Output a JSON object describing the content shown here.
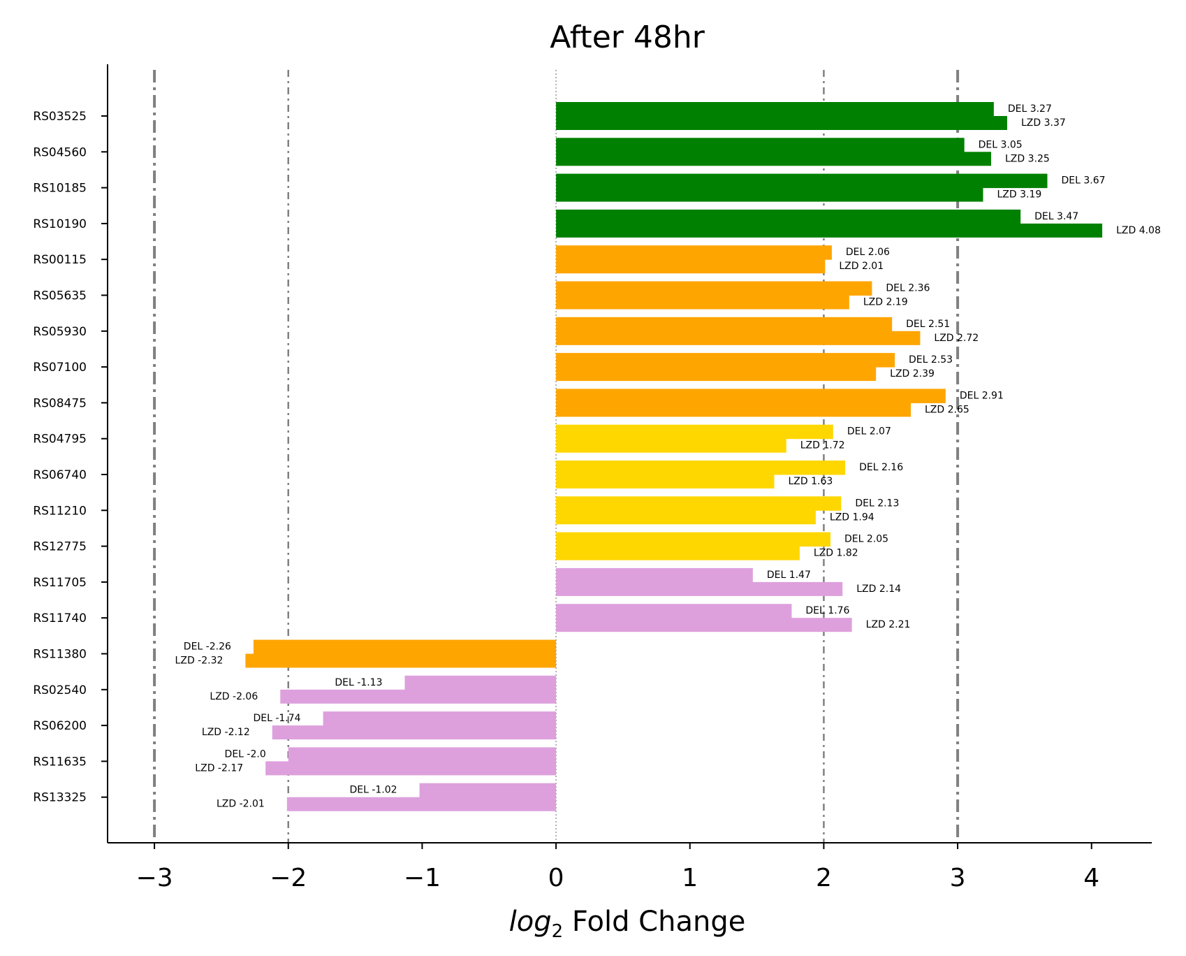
{
  "chart_data": {
    "type": "bar",
    "orientation": "horizontal",
    "title": "After 48hr",
    "xlabel_italic": "log",
    "xlabel_sub": "2",
    "xlabel_rest": "Fold Change",
    "xlim": [
      -3.35,
      4.45
    ],
    "xticks": [
      -3,
      -2,
      -1,
      0,
      1,
      2,
      3,
      4
    ],
    "xtick_labels": [
      "−3",
      "−2",
      "−1",
      "0",
      "1",
      "2",
      "3",
      "4"
    ],
    "reference_lines": [
      {
        "x": -3,
        "style": "thick-dashdot"
      },
      {
        "x": -2,
        "style": "thin-dashdot"
      },
      {
        "x": 0,
        "style": "dotted"
      },
      {
        "x": 2,
        "style": "thin-dashdot"
      },
      {
        "x": 3,
        "style": "thick-dashdot"
      }
    ],
    "colors": {
      "green": "#008000",
      "orange": "#FFA500",
      "gold": "#FFD700",
      "plum": "#DDA0DD",
      "refline": "#808080"
    },
    "series_labels": [
      "DEL",
      "LZD"
    ],
    "categories": [
      {
        "name": "RS03525",
        "color": "green",
        "del": 3.27,
        "lzd": 3.37,
        "del_label": "DEL 3.27",
        "lzd_label": "LZD 3.37"
      },
      {
        "name": "RS04560",
        "color": "green",
        "del": 3.05,
        "lzd": 3.25,
        "del_label": "DEL 3.05",
        "lzd_label": "LZD 3.25"
      },
      {
        "name": "RS10185",
        "color": "green",
        "del": 3.67,
        "lzd": 3.19,
        "del_label": "DEL 3.67",
        "lzd_label": "LZD 3.19"
      },
      {
        "name": "RS10190",
        "color": "green",
        "del": 3.47,
        "lzd": 4.08,
        "del_label": "DEL 3.47",
        "lzd_label": "LZD 4.08"
      },
      {
        "name": "RS00115",
        "color": "orange",
        "del": 2.06,
        "lzd": 2.01,
        "del_label": "DEL 2.06",
        "lzd_label": "LZD 2.01"
      },
      {
        "name": "RS05635",
        "color": "orange",
        "del": 2.36,
        "lzd": 2.19,
        "del_label": "DEL 2.36",
        "lzd_label": "LZD 2.19"
      },
      {
        "name": "RS05930",
        "color": "orange",
        "del": 2.51,
        "lzd": 2.72,
        "del_label": "DEL 2.51",
        "lzd_label": "LZD 2.72"
      },
      {
        "name": "RS07100",
        "color": "orange",
        "del": 2.53,
        "lzd": 2.39,
        "del_label": "DEL 2.53",
        "lzd_label": "LZD 2.39"
      },
      {
        "name": "RS08475",
        "color": "orange",
        "del": 2.91,
        "lzd": 2.65,
        "del_label": "DEL 2.91",
        "lzd_label": "LZD 2.65"
      },
      {
        "name": "RS04795",
        "color": "gold",
        "del": 2.07,
        "lzd": 1.72,
        "del_label": "DEL 2.07",
        "lzd_label": "LZD 1.72"
      },
      {
        "name": "RS06740",
        "color": "gold",
        "del": 2.16,
        "lzd": 1.63,
        "del_label": "DEL 2.16",
        "lzd_label": "LZD 1.63"
      },
      {
        "name": "RS11210",
        "color": "gold",
        "del": 2.13,
        "lzd": 1.94,
        "del_label": "DEL 2.13",
        "lzd_label": "LZD 1.94"
      },
      {
        "name": "RS12775",
        "color": "gold",
        "del": 2.05,
        "lzd": 1.82,
        "del_label": "DEL 2.05",
        "lzd_label": "LZD 1.82"
      },
      {
        "name": "RS11705",
        "color": "plum",
        "del": 1.47,
        "lzd": 2.14,
        "del_label": "DEL 1.47",
        "lzd_label": "LZD 2.14"
      },
      {
        "name": "RS11740",
        "color": "plum",
        "del": 1.76,
        "lzd": 2.21,
        "del_label": "DEL 1.76",
        "lzd_label": "LZD 2.21"
      },
      {
        "name": "RS11380",
        "color": "orange",
        "del": -2.26,
        "lzd": -2.32,
        "del_label": "DEL -2.26",
        "lzd_label": "LZD -2.32"
      },
      {
        "name": "RS02540",
        "color": "plum",
        "del": -1.13,
        "lzd": -2.06,
        "del_label": "DEL -1.13",
        "lzd_label": "LZD -2.06"
      },
      {
        "name": "RS06200",
        "color": "plum",
        "del": -1.74,
        "lzd": -2.12,
        "del_label": "DEL -1.74",
        "lzd_label": "LZD -2.12"
      },
      {
        "name": "RS11635",
        "color": "plum",
        "del": -2.0,
        "lzd": -2.17,
        "del_label": "DEL -2.0",
        "lzd_label": "LZD -2.17"
      },
      {
        "name": "RS13325",
        "color": "plum",
        "del": -1.02,
        "lzd": -2.01,
        "del_label": "DEL -1.02",
        "lzd_label": "LZD -2.01"
      }
    ]
  }
}
